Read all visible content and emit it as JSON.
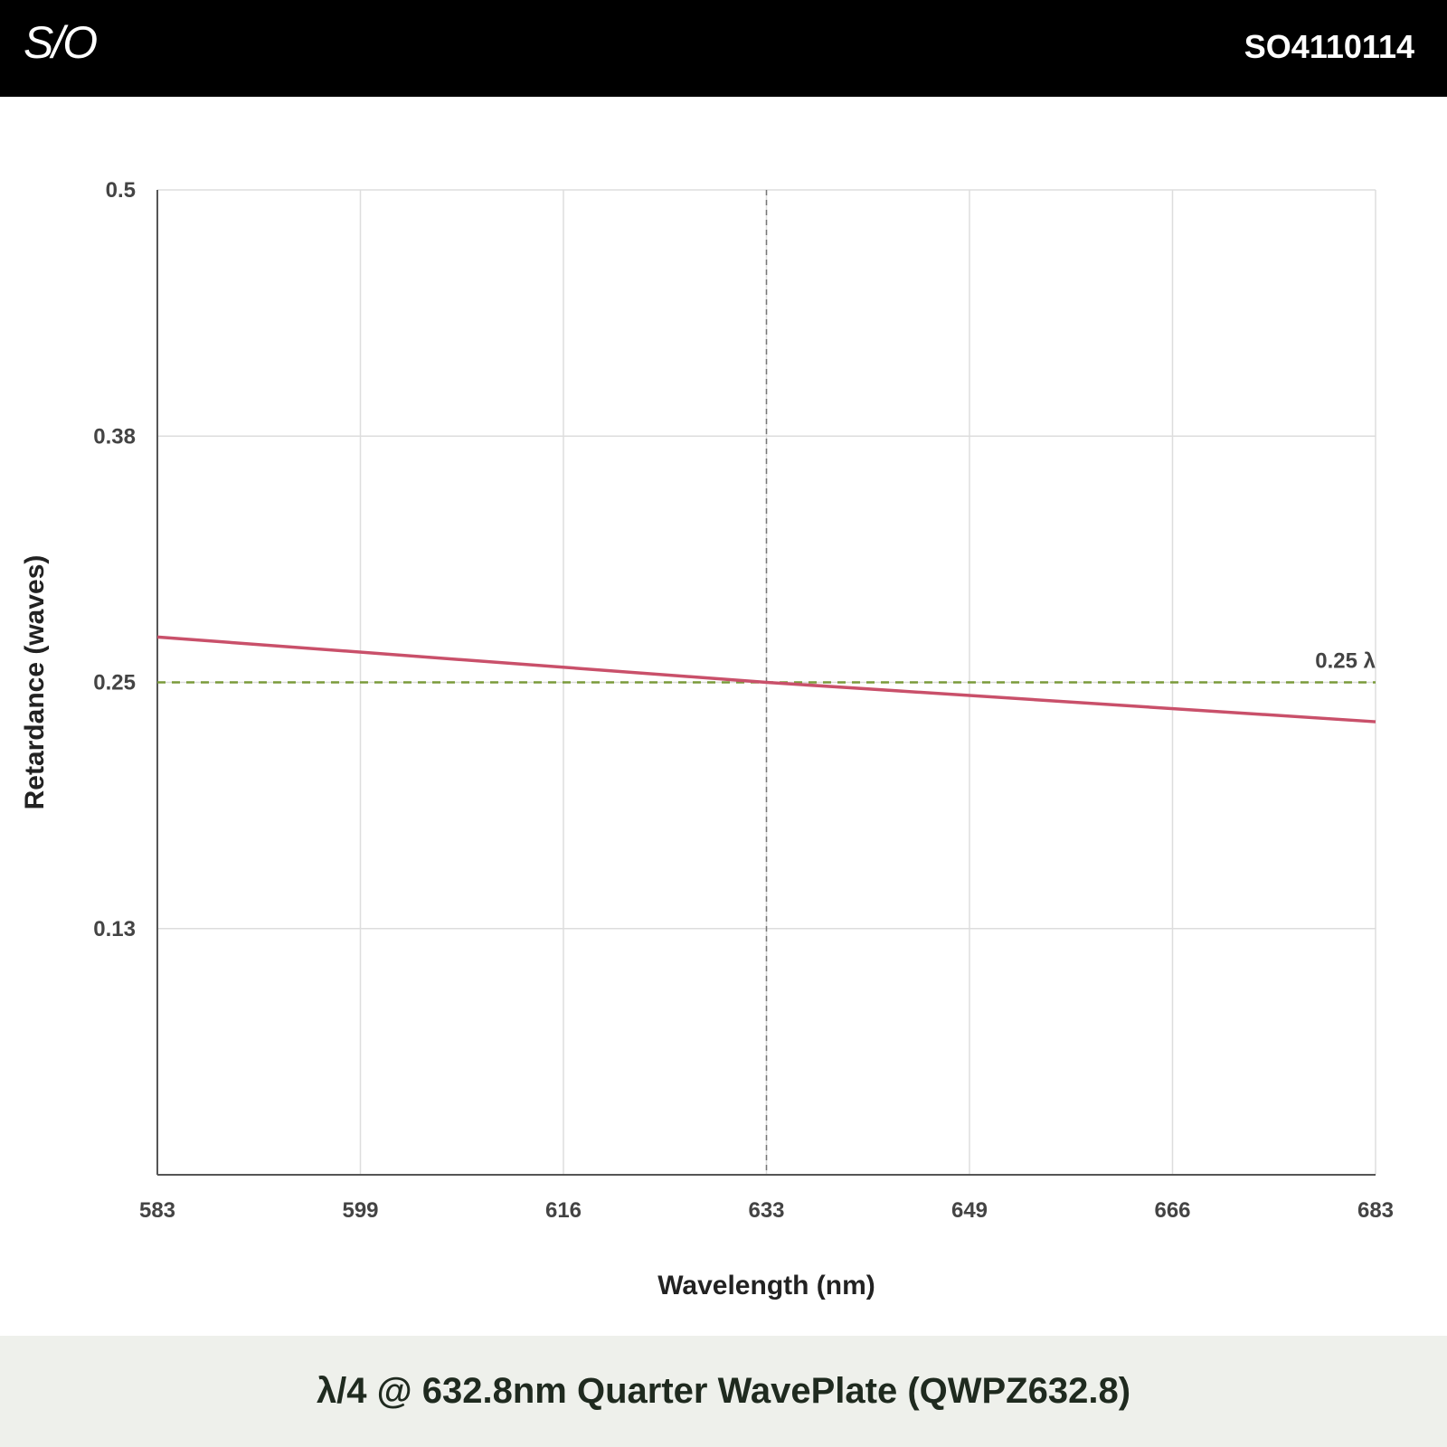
{
  "header": {
    "logo_text": "S/O",
    "part_number": "SO4110114"
  },
  "footer": {
    "title": "λ/4 @ 632.8nm Quarter WavePlate (QWPZ632.8)"
  },
  "colors": {
    "series": "#c9506a",
    "reference": "#7a9a3a",
    "marker": "#777777",
    "grid": "#dddddd",
    "axis": "#555555",
    "text": "#444444"
  },
  "chart_data": {
    "type": "line",
    "title": "",
    "xlabel": "Wavelength (nm)",
    "ylabel": "Retardance (waves)",
    "xlim": [
      583,
      683
    ],
    "ylim": [
      0.0,
      0.5
    ],
    "x_ticks": [
      583,
      599,
      616,
      633,
      649,
      666,
      683
    ],
    "x_tick_labels": [
      "583",
      "599",
      "616",
      "633",
      "649",
      "666",
      "683"
    ],
    "y_ticks": [
      0.125,
      0.25,
      0.375,
      0.5
    ],
    "y_tick_labels": [
      "0.13",
      "0.25",
      "0.38",
      "0.5"
    ],
    "grid": true,
    "series": [
      {
        "x": [
          583,
          633,
          683
        ],
        "y": [
          0.273,
          0.25,
          0.23
        ]
      }
    ],
    "reference_line": {
      "y": 0.25,
      "label": "0.25 λ",
      "style": "dashed"
    },
    "marker_line": {
      "x": 633,
      "style": "dashed"
    }
  }
}
